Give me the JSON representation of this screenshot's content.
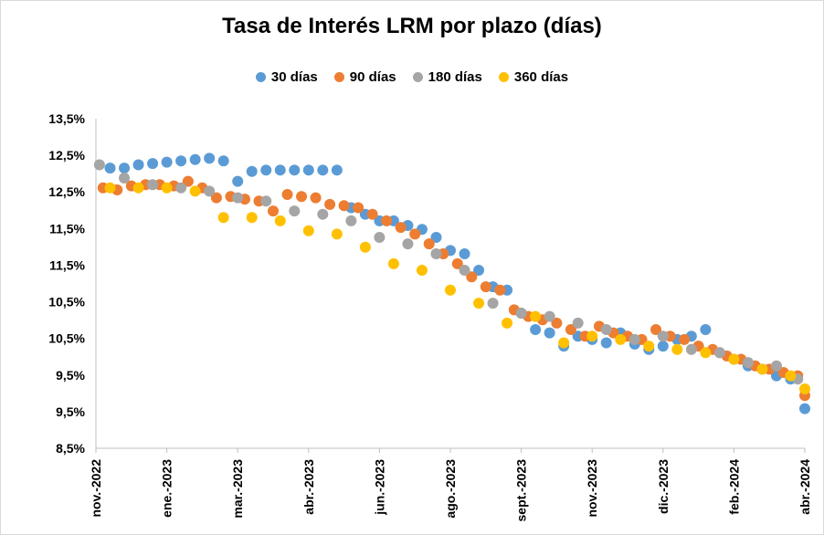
{
  "chart_data": {
    "type": "scatter",
    "title": "Tasa de Interés LRM por plazo (días)",
    "ytick_labels": [
      "13,5%",
      "12,5%",
      "12,5%",
      "11,5%",
      "11,5%",
      "10,5%",
      "10,5%",
      "9,5%",
      "9,5%",
      "8,5%"
    ],
    "ylim": [
      8.5,
      13.5
    ],
    "xtick_labels": [
      "nov.-2022",
      "ene.-2023",
      "mar.-2023",
      "abr.-2023",
      "jun.-2023",
      "ago.-2023",
      "sept.-2023",
      "nov.-2023",
      "dic.-2023",
      "feb.-2024",
      "abr.-2024"
    ],
    "xlim": [
      0,
      100
    ],
    "legend_position": "top-center",
    "grid": false,
    "series": [
      {
        "name": "30 días",
        "color": "#5B9BD5",
        "x": [
          2,
          4,
          6,
          8,
          10,
          12,
          14,
          16,
          18,
          20,
          22,
          24,
          26,
          28,
          30,
          32,
          34,
          36,
          38,
          40,
          42,
          44,
          46,
          48,
          50,
          52,
          54,
          56,
          58,
          60,
          62,
          64,
          66,
          68,
          70,
          72,
          74,
          76,
          78,
          80,
          82,
          84,
          86,
          88,
          90,
          92,
          94,
          96,
          98,
          100
        ],
        "y": [
          12.75,
          12.75,
          12.8,
          12.82,
          12.84,
          12.86,
          12.88,
          12.9,
          12.86,
          12.55,
          12.7,
          12.72,
          12.72,
          12.72,
          12.72,
          12.72,
          12.72,
          12.15,
          12.05,
          11.95,
          11.95,
          11.88,
          11.82,
          11.7,
          11.5,
          11.45,
          11.2,
          10.95,
          10.9,
          10.55,
          10.3,
          10.25,
          10.05,
          10.2,
          10.15,
          10.1,
          10.25,
          10.08,
          10.0,
          10.05,
          10.15,
          10.2,
          10.3,
          9.95,
          9.85,
          9.75,
          9.7,
          9.6,
          9.55,
          9.1
        ],
        "note": "approximate"
      },
      {
        "name": "90 días",
        "color": "#ED7D31",
        "x": [
          1,
          3,
          5,
          7,
          9,
          11,
          13,
          15,
          17,
          19,
          21,
          23,
          25,
          27,
          29,
          31,
          33,
          35,
          37,
          39,
          41,
          43,
          45,
          47,
          49,
          51,
          53,
          55,
          57,
          59,
          61,
          63,
          65,
          67,
          69,
          71,
          73,
          75,
          77,
          79,
          81,
          83,
          85,
          87,
          89,
          91,
          93,
          95,
          97,
          99,
          100
        ],
        "y": [
          12.45,
          12.42,
          12.48,
          12.5,
          12.5,
          12.48,
          12.55,
          12.45,
          12.3,
          12.32,
          12.28,
          12.25,
          12.1,
          12.35,
          12.32,
          12.3,
          12.2,
          12.18,
          12.15,
          12.05,
          11.95,
          11.85,
          11.75,
          11.6,
          11.45,
          11.3,
          11.1,
          10.95,
          10.9,
          10.6,
          10.5,
          10.45,
          10.4,
          10.3,
          10.2,
          10.35,
          10.25,
          10.2,
          10.15,
          10.3,
          10.2,
          10.15,
          10.05,
          10.0,
          9.9,
          9.85,
          9.75,
          9.7,
          9.65,
          9.6,
          9.3
        ],
        "note": "approximate"
      },
      {
        "name": "180 días",
        "color": "#A5A5A5",
        "x": [
          0.5,
          4,
          8,
          12,
          16,
          20,
          24,
          28,
          32,
          36,
          40,
          44,
          48,
          52,
          56,
          60,
          64,
          68,
          72,
          76,
          80,
          84,
          88,
          92,
          96,
          99
        ],
        "y": [
          12.8,
          12.6,
          12.5,
          12.45,
          12.4,
          12.3,
          12.25,
          12.1,
          12.05,
          11.95,
          11.7,
          11.6,
          11.45,
          11.2,
          10.7,
          10.55,
          10.5,
          10.4,
          10.3,
          10.15,
          10.2,
          10.0,
          9.95,
          9.8,
          9.75,
          9.55
        ],
        "note": "approximate"
      },
      {
        "name": "360 días",
        "color": "#FFC000",
        "x": [
          2,
          6,
          10,
          14,
          18,
          22,
          26,
          30,
          34,
          38,
          42,
          46,
          50,
          54,
          58,
          62,
          66,
          70,
          74,
          78,
          82,
          86,
          90,
          94,
          98,
          100
        ],
        "y": [
          12.45,
          12.45,
          12.45,
          12.4,
          12.0,
          12.0,
          11.95,
          11.8,
          11.75,
          11.55,
          11.3,
          11.2,
          10.9,
          10.7,
          10.4,
          10.5,
          10.1,
          10.2,
          10.15,
          10.05,
          10.0,
          9.95,
          9.85,
          9.7,
          9.6,
          9.4
        ],
        "note": "approximate"
      }
    ]
  }
}
